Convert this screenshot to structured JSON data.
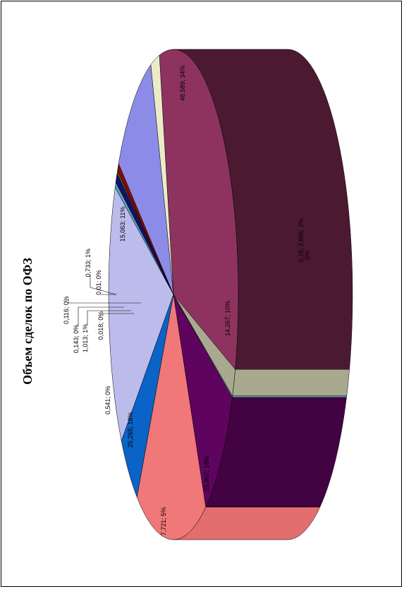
{
  "chart_data": {
    "type": "pie",
    "style": "3d",
    "orientation": "rotated 90° counter-clockwise",
    "title": "Объем сделок по ОФЗ",
    "slices": [
      {
        "value": 48.589,
        "label": "48,589; 34%",
        "color": "#8e3360",
        "side": "#4b1a31"
      },
      {
        "value": 2.686,
        "label": "2,686; 2%",
        "color": "#a9a98f",
        "side": "#a9a98f"
      },
      {
        "value": 0.16,
        "label": "0,16; 0%",
        "color": "#6fa0b0",
        "side": "#6fa0b0"
      },
      {
        "value": 14.267,
        "label": "14,267; 10%",
        "color": "#5e045e",
        "side": "#430343"
      },
      {
        "value": 25.907,
        "label": "25,907; 18%",
        "color": "#f07878",
        "side": "#e26e6e"
      },
      {
        "value": 7.721,
        "label": "7,721; 5%",
        "color": "#0a63c6",
        "side": "#0a53a6"
      },
      {
        "value": 25.265,
        "label": "25,265; 18%",
        "color": "#bcbcec",
        "side": "#a4a4d4"
      },
      {
        "value": 0.541,
        "label": "0,541; 0%",
        "color": "#5b9ebd",
        "side": "#5b9ebd"
      },
      {
        "value": 0.018,
        "label": "0,018; 0%",
        "color": "#444444",
        "side": "#444444"
      },
      {
        "value": 1.013,
        "label": "1,013; 1%",
        "color": "#12126e",
        "side": "#12126e"
      },
      {
        "value": 0.143,
        "label": "0,143; 0%",
        "color": "#e6e612",
        "side": "#e6e612"
      },
      {
        "value": 0.116,
        "label": "0,116; 0%",
        "color": "#d6c63a",
        "side": "#d6c63a"
      },
      {
        "value": 0.01,
        "label": "0,01; 0%",
        "color": "#5e2222",
        "side": "#5e2222"
      },
      {
        "value": 0.733,
        "label": "0,733; 1%",
        "color": "#8a0808",
        "side": "#8a0808"
      },
      {
        "value": 15.063,
        "label": "15,063; 11%",
        "color": "#8c8ce8",
        "side": "#7a7ad0"
      },
      {
        "value": 3.2,
        "label": "",
        "color": "#ecebc8",
        "side": "#ecebc8"
      }
    ]
  }
}
